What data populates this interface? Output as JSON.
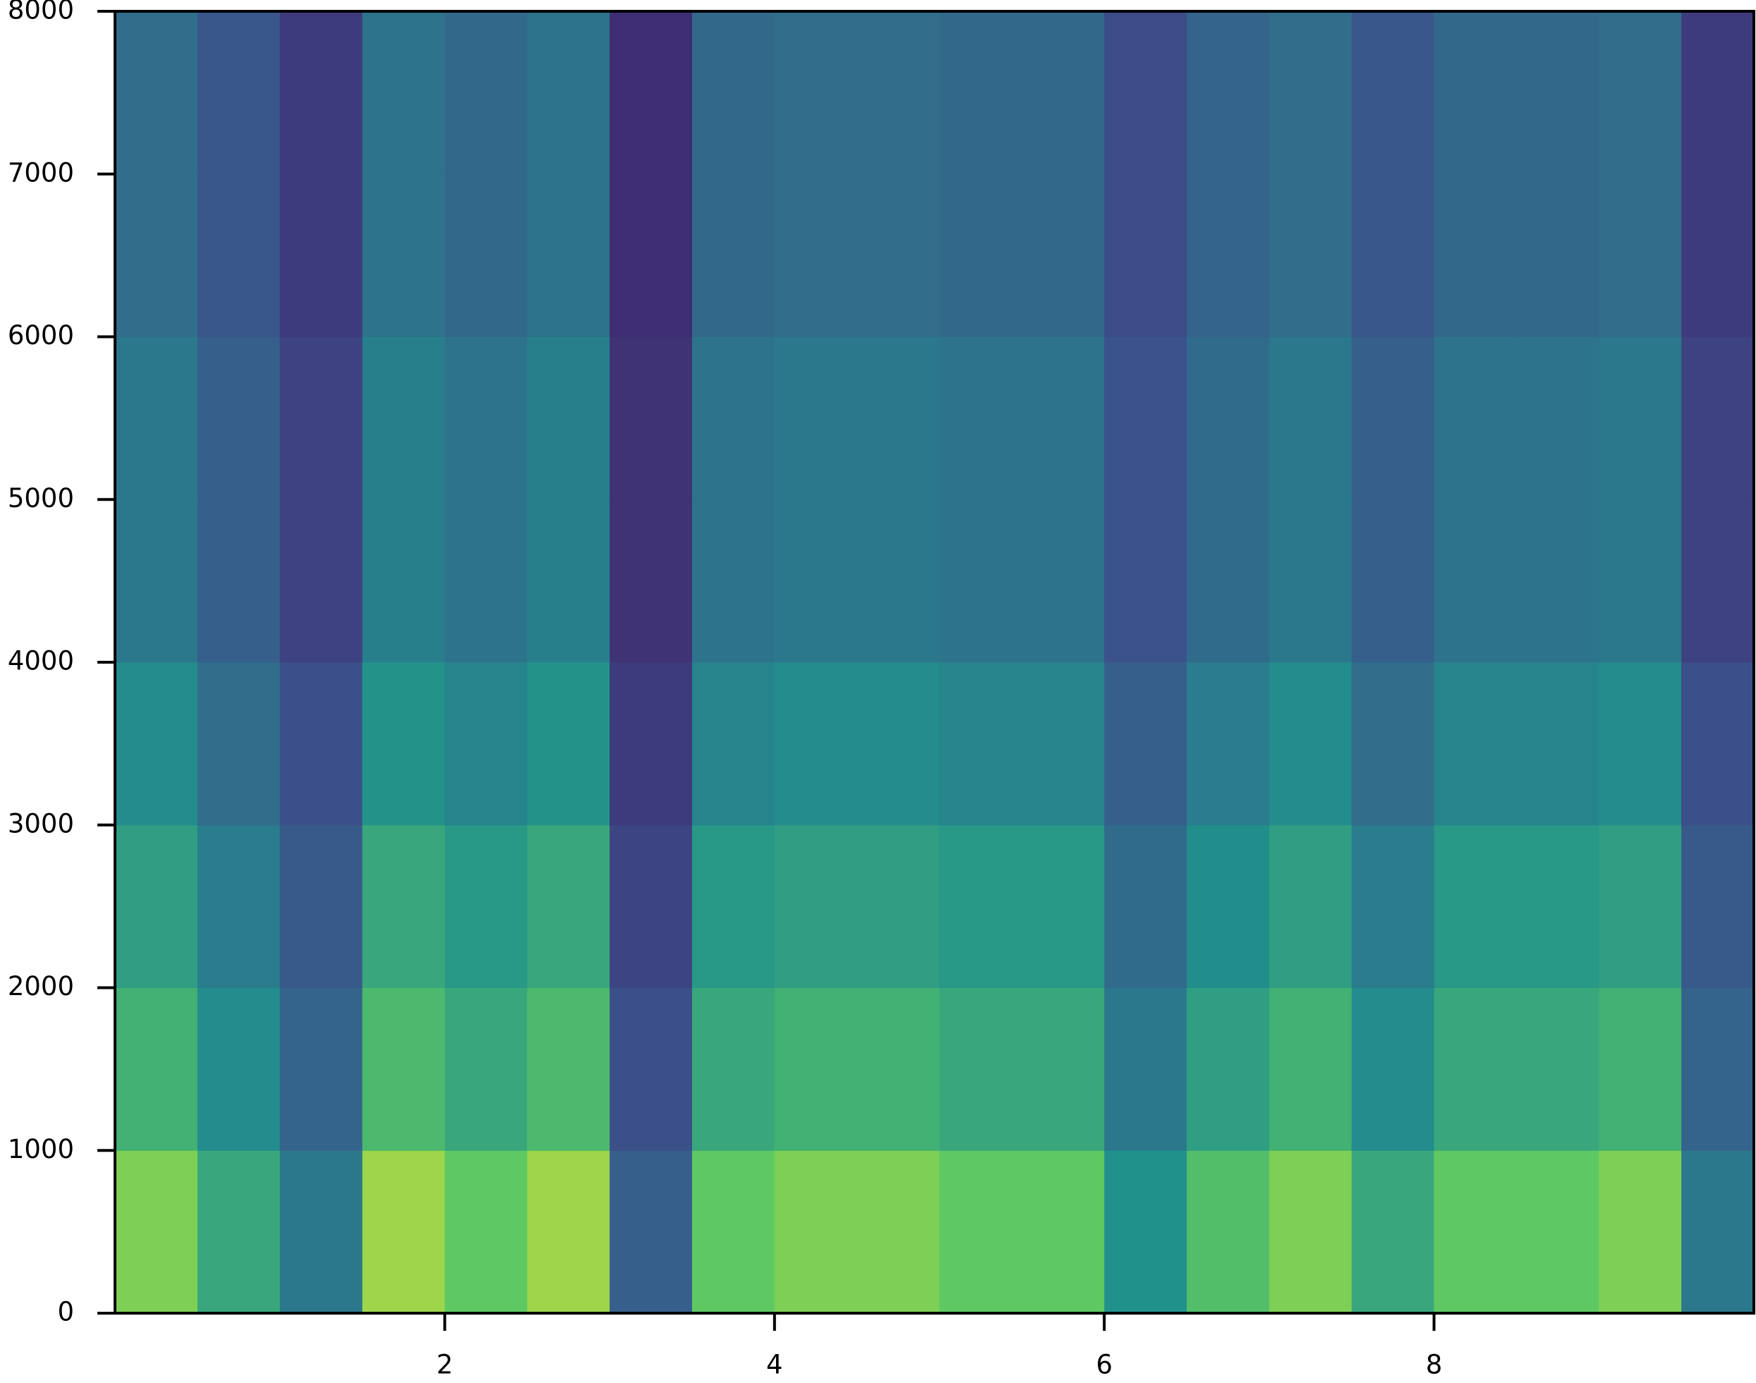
{
  "chart_data": {
    "type": "spectrogram",
    "colormap": "viridis",
    "xbins": [
      0,
      0.5,
      1,
      1.5,
      2,
      2.5,
      3,
      3.5,
      4,
      4.5,
      5,
      5.5,
      6,
      6.5,
      7,
      7.5,
      8,
      8.5,
      9,
      9.5,
      9.94
    ],
    "ybins": [
      0,
      1000,
      2000,
      3000,
      4000,
      5000,
      6000,
      7000,
      8000
    ],
    "values": [
      [
        0.8,
        0.6,
        0.4,
        0.85,
        0.75,
        0.85,
        0.3,
        0.75,
        0.8,
        0.8,
        0.75,
        0.75,
        0.5,
        0.7,
        0.8,
        0.6,
        0.75,
        0.75,
        0.8,
        0.4
      ],
      [
        0.64,
        0.48,
        0.32,
        0.68,
        0.6,
        0.68,
        0.24,
        0.6,
        0.64,
        0.64,
        0.6,
        0.6,
        0.4,
        0.56,
        0.64,
        0.48,
        0.6,
        0.6,
        0.64,
        0.32
      ],
      [
        0.56,
        0.42,
        0.28,
        0.6,
        0.53,
        0.6,
        0.21,
        0.53,
        0.56,
        0.56,
        0.53,
        0.53,
        0.35,
        0.49,
        0.56,
        0.42,
        0.53,
        0.53,
        0.56,
        0.28
      ],
      [
        0.48,
        0.36,
        0.24,
        0.51,
        0.45,
        0.51,
        0.18,
        0.45,
        0.48,
        0.48,
        0.45,
        0.45,
        0.3,
        0.42,
        0.48,
        0.36,
        0.45,
        0.45,
        0.48,
        0.24
      ],
      [
        0.4,
        0.3,
        0.2,
        0.43,
        0.38,
        0.43,
        0.15,
        0.38,
        0.4,
        0.4,
        0.38,
        0.38,
        0.25,
        0.35,
        0.4,
        0.3,
        0.38,
        0.38,
        0.4,
        0.2
      ],
      [
        0.4,
        0.3,
        0.2,
        0.43,
        0.38,
        0.43,
        0.15,
        0.38,
        0.4,
        0.4,
        0.38,
        0.38,
        0.25,
        0.35,
        0.4,
        0.3,
        0.38,
        0.38,
        0.4,
        0.2
      ],
      [
        0.36,
        0.27,
        0.18,
        0.38,
        0.34,
        0.38,
        0.14,
        0.34,
        0.36,
        0.36,
        0.34,
        0.34,
        0.23,
        0.32,
        0.36,
        0.27,
        0.34,
        0.34,
        0.36,
        0.18
      ],
      [
        0.36,
        0.27,
        0.18,
        0.38,
        0.34,
        0.38,
        0.14,
        0.34,
        0.36,
        0.36,
        0.34,
        0.34,
        0.23,
        0.32,
        0.36,
        0.27,
        0.34,
        0.34,
        0.36,
        0.18
      ]
    ],
    "xlim": [
      0,
      9.94
    ],
    "xticks": [
      2,
      4,
      6,
      8
    ],
    "ylim": [
      0,
      8000
    ],
    "yticks": [
      0,
      1000,
      2000,
      3000,
      4000,
      5000,
      6000,
      7000,
      8000
    ]
  }
}
